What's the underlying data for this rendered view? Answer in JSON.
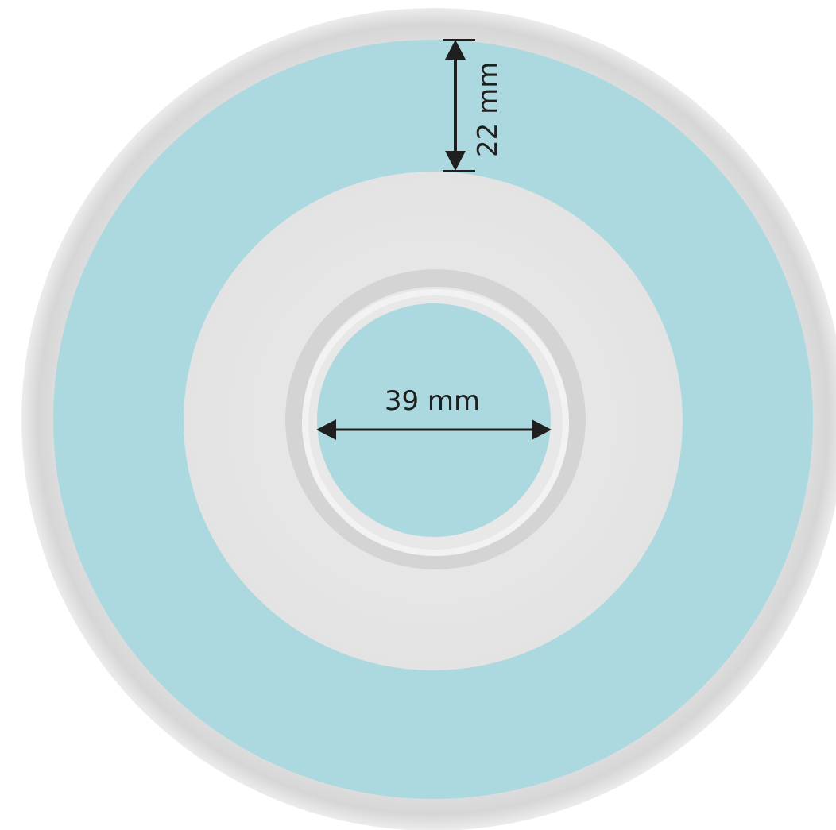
{
  "dimensions": {
    "band_width_label": "22 mm",
    "hole_diameter_label": "39 mm"
  },
  "colors": {
    "background": "#ffffff",
    "outer_rim": "#dcdcdc",
    "plate_shading": "#e4e4e4",
    "plate_face": "#e9e9e9",
    "inner_ring": "#d2d2d2",
    "highlight_band": "#acd9df",
    "arrow": "#1f1f1f"
  }
}
